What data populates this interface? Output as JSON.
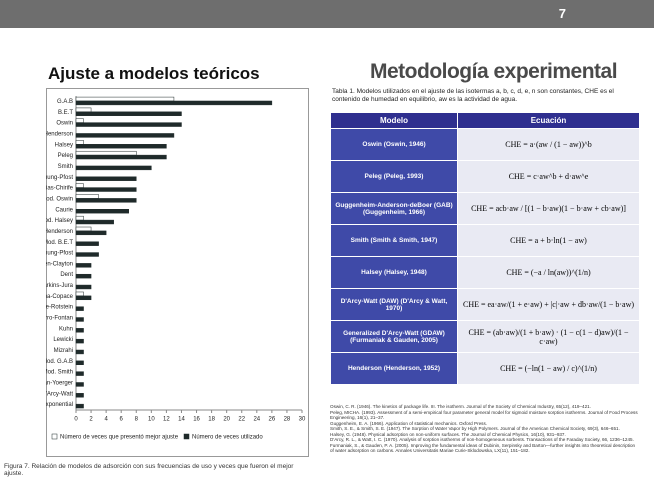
{
  "slide": {
    "page_number": "7",
    "left_heading": "Ajuste a modelos teóricos",
    "right_heading": "Metodología experimental",
    "figure_caption": "Figura 7. Relación de modelos de adsorción con sus frecuencias de uso y veces que fueron el mejor ajuste.",
    "table_caption": "Tabla 1. Modelos utilizados en el ajuste de las isotermas a, b, c, d, e, n son constantes, CHE es el contenido de humedad en equilibrio, aw es la actividad de agua."
  },
  "chart_data": {
    "type": "hbar",
    "categories": [
      "G.A.B",
      "B.E.T",
      "Oswin",
      "Henderson",
      "Halsey",
      "Peleg",
      "Smith",
      "Chung-Pfost",
      "Iglesias-Chirife",
      "Mod. Oswin",
      "Caurie",
      "Mod. Halsey",
      "Mod. Henderson",
      "Mod. B.E.T",
      "Mod. Chung-Pfost",
      "Chen-Clayton",
      "Dent",
      "Harkins-Jura",
      "Sigma-Copace",
      "Crapiste-Rotstein",
      "Ferro-Fontan",
      "Kuhn",
      "Lewicki",
      "Mizrahi",
      "Mod. G.A.B",
      "Mod. Smith",
      "Strohman-Yoerger",
      "D'Arcy-Watt",
      "Exponential"
    ],
    "series": [
      {
        "name": "Número de veces que presentó mejor ajuste",
        "color": "#ffffff",
        "values": [
          13,
          2,
          1,
          0,
          1,
          8,
          0,
          0,
          1,
          3,
          0,
          1,
          2,
          0,
          0,
          0,
          0,
          0,
          1,
          0,
          0,
          0,
          0,
          0,
          0,
          0,
          0,
          0,
          0
        ]
      },
      {
        "name": "Número de veces utilizado",
        "color": "#1f2a2a",
        "values": [
          26,
          14,
          14,
          13,
          12,
          12,
          10,
          8,
          8,
          8,
          7,
          5,
          4,
          3,
          3,
          2,
          2,
          2,
          2,
          1,
          1,
          1,
          1,
          1,
          1,
          1,
          1,
          1,
          1
        ]
      }
    ],
    "xlim": [
      0,
      30
    ],
    "xticks": [
      0,
      2,
      4,
      6,
      8,
      10,
      12,
      14,
      16,
      18,
      20,
      22,
      24,
      26,
      28,
      30
    ],
    "legend": "bottom"
  },
  "table": {
    "header": [
      "Modelo",
      "Ecuación"
    ],
    "rows": [
      [
        "Oswin (Oswin, 1946)",
        "CHE = a·(aw / (1 − aw))^b"
      ],
      [
        "Peleg (Peleg, 1993)",
        "CHE = c·aw^b + d·aw^e"
      ],
      [
        "Guggenheim-Anderson-deBoer (GAB) (Guggenheim, 1966)",
        "CHE = acb·aw / [(1 − b·aw)(1 − b·aw + cb·aw)]"
      ],
      [
        "Smith (Smith & Smith, 1947)",
        "CHE = a + b·ln(1 − aw)"
      ],
      [
        "Halsey (Halsey, 1948)",
        "CHE = (−a / ln(aw))^(1/n)"
      ],
      [
        "D'Arcy-Watt (DAW) (D'Arcy & Watt, 1970)",
        "CHE = ea·aw/(1 + e·aw) + |c|·aw + db·aw/(1 − b·aw)"
      ],
      [
        "Generalized D'Arcy-Watt (GDAW) (Furmaniak & Gauden, 2005)",
        "CHE = (ab·aw)/(1 + b·aw) · (1 − c(1 − d)aw)/(1 − c·aw)"
      ],
      [
        "Henderson (Henderson, 1952)",
        "CHE = (−ln(1 − aw) / c)^(1/n)"
      ]
    ]
  },
  "references": [
    "Oswin, C. R. (1946). The kinetics of package life. III. The isotherm. Journal of the Society of Chemical Industry, 65(12), 419–421.",
    "Peleg, MICHA. (1993). Assessment of a semi-empirical four parameter general model for sigmoid moisture sorption isotherms. Journal of Food Process Engineering, 16(1), 21–37.",
    "Guggenheim, E. A. (1966). Application of statistical mechanics. Oxford Press.",
    "Smith, S. E., & Smith, S. E. (1947). The Sorption of Water Vapor by High Polymers. Journal of the American Chemical Society, 69(3), 646–651.",
    "Halsey, G. (1948). Physical adsorption on non-uniform surfaces. The Journal of Chemical Physics, 16(10), 931–937.",
    "D'Arcy, R. L., & Watt, I. C. (1970). Analysis of sorption isotherms of non-homogeneous sorbents. Transactions of the Faraday Society, 66, 1236–1245.",
    "Furmaniak, S., & Gauden, P. A. (2005). Improving the fundamental ideas of Dubinin, Serpinsky and Barton—further insights into theoretical description of water adsorption on carbons. Annales Universitatis Mariae Curie-Sklodowska, LX(11), 151–182."
  ]
}
